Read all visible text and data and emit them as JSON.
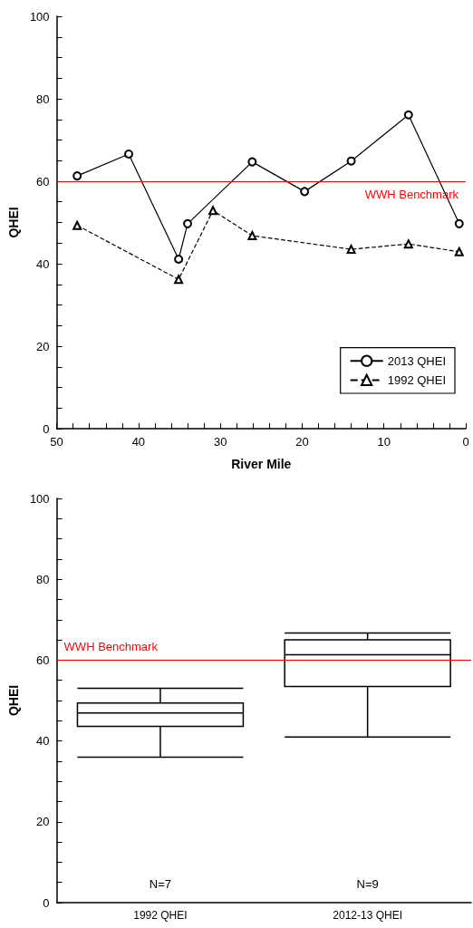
{
  "chart_data": [
    {
      "type": "line",
      "xlabel": "River Mile",
      "ylabel": "QHEI",
      "xlim": [
        50,
        0
      ],
      "ylim": [
        0,
        100
      ],
      "xticks": [
        50,
        {
          "value": 48,
          "label": null
        },
        {
          "value": 46,
          "label": null
        },
        {
          "value": 44,
          "label": null
        },
        {
          "value": 42,
          "label": null
        },
        40,
        {
          "value": 38,
          "label": null
        },
        {
          "value": 36,
          "label": null
        },
        {
          "value": 34,
          "label": null
        },
        {
          "value": 32,
          "label": null
        },
        30,
        {
          "value": 28,
          "label": null
        },
        {
          "value": 26,
          "label": null
        },
        {
          "value": 24,
          "label": null
        },
        {
          "value": 22,
          "label": null
        },
        20,
        {
          "value": 18,
          "label": null
        },
        {
          "value": 16,
          "label": null
        },
        {
          "value": 14,
          "label": null
        },
        {
          "value": 12,
          "label": null
        },
        10,
        {
          "value": 8,
          "label": null
        },
        {
          "value": 6,
          "label": null
        },
        {
          "value": 4,
          "label": null
        },
        {
          "value": 2,
          "label": null
        },
        0
      ],
      "yticks": [
        0,
        {
          "value": 5,
          "label": null
        },
        {
          "value": 10,
          "label": null
        },
        {
          "value": 15,
          "label": null
        },
        20,
        {
          "value": 25,
          "label": null
        },
        {
          "value": 30,
          "label": null
        },
        {
          "value": 35,
          "label": null
        },
        40,
        {
          "value": 45,
          "label": null
        },
        {
          "value": 50,
          "label": null
        },
        {
          "value": 55,
          "label": null
        },
        60,
        {
          "value": 65,
          "label": null
        },
        {
          "value": 70,
          "label": null
        },
        {
          "value": 75,
          "label": null
        },
        80,
        {
          "value": 85,
          "label": null
        },
        {
          "value": 90,
          "label": null
        },
        {
          "value": 95,
          "label": null
        },
        100
      ],
      "series": [
        {
          "name": "2013 QHEI",
          "color": "#000000",
          "marker": "circle",
          "line_style": "solid",
          "x": [
            47.5,
            41.2,
            35.1,
            34.0,
            26.1,
            19.7,
            14.0,
            7.0,
            0.8
          ],
          "values": [
            61.3,
            66.6,
            41.1,
            49.7,
            64.7,
            57.5,
            64.9,
            76.1,
            49.7
          ]
        },
        {
          "name": "1992 QHEI",
          "color": "#000000",
          "marker": "triangle",
          "line_style": "dashed",
          "x": [
            47.5,
            35.1,
            30.9,
            26.1,
            14.0,
            7.0,
            0.8
          ],
          "values": [
            49.3,
            36.2,
            52.9,
            46.8,
            43.5,
            44.8,
            42.9
          ]
        }
      ],
      "ref_lines": [
        {
          "axis": "y",
          "value": 60,
          "label": "WWH Benchmark",
          "color": "#ff0000"
        }
      ],
      "legend": "bottom right",
      "grid": false
    },
    {
      "type": "box",
      "ylabel": "QHEI",
      "categories": [
        "1992 QHEI",
        "2012-13 QHEI"
      ],
      "ylim": [
        0,
        100
      ],
      "yticks": [
        0,
        {
          "value": 5,
          "label": null
        },
        {
          "value": 10,
          "label": null
        },
        {
          "value": 15,
          "label": null
        },
        20,
        {
          "value": 25,
          "label": null
        },
        {
          "value": 30,
          "label": null
        },
        {
          "value": 35,
          "label": null
        },
        40,
        {
          "value": 45,
          "label": null
        },
        {
          "value": 50,
          "label": null
        },
        {
          "value": 55,
          "label": null
        },
        60,
        {
          "value": 65,
          "label": null
        },
        {
          "value": 70,
          "label": null
        },
        {
          "value": 75,
          "label": null
        },
        80,
        {
          "value": 85,
          "label": null
        },
        {
          "value": 90,
          "label": null
        },
        {
          "value": 95,
          "label": null
        },
        100
      ],
      "boxes": [
        {
          "low": 36.0,
          "q1": 43.6,
          "median": 46.9,
          "q3": 49.4,
          "high": 53.0
        },
        {
          "low": 41.0,
          "q1": 53.5,
          "median": 61.3,
          "q3": 65.0,
          "high": 66.7
        }
      ],
      "ref_lines": [
        {
          "axis": "y",
          "value": 60,
          "label": "WWH Benchmark",
          "color": "#ff0000"
        }
      ],
      "annotations": [
        "N=7",
        "N=9"
      ],
      "grid": false
    }
  ]
}
